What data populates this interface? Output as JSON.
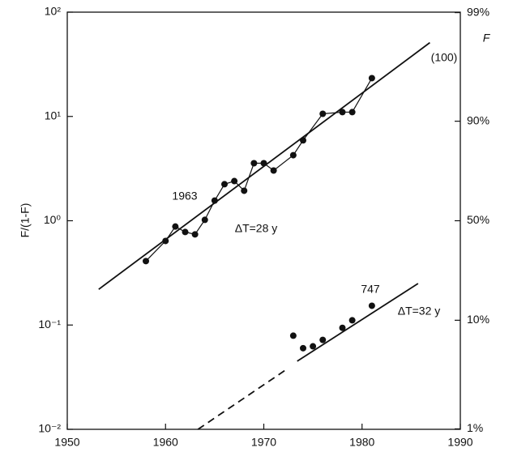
{
  "chart_data": {
    "type": "scatter",
    "ylabel": "F/(1-F)",
    "y2label": "F",
    "xlim": [
      1950,
      1990
    ],
    "xticks": [
      1950,
      1960,
      1970,
      1980,
      1990
    ],
    "ylim": [
      0.01,
      100
    ],
    "yscale": "log",
    "yticks": [
      {
        "value": 100,
        "label": "10²"
      },
      {
        "value": 10,
        "label": "10¹"
      },
      {
        "value": 1,
        "label": "10⁰"
      },
      {
        "value": 0.1,
        "label": "10⁻¹"
      },
      {
        "value": 0.01,
        "label": "10⁻²"
      }
    ],
    "y2scale": "logit",
    "y2lim": [
      0.99,
      99.01
    ],
    "y2ticks": [
      {
        "value": 99,
        "label": "99%"
      },
      {
        "value": 90,
        "label": "90%"
      },
      {
        "value": 50,
        "label": "50%"
      },
      {
        "value": 10,
        "label": "10%"
      },
      {
        "value": 1,
        "label": "1%"
      }
    ],
    "series": [
      {
        "color": "#111",
        "connected": true,
        "x": [
          1958,
          1960,
          1961,
          1962,
          1963,
          1964,
          1965,
          1966,
          1967,
          1968,
          1969,
          1970,
          1971,
          1973,
          1974,
          1976,
          1978,
          1979,
          1981
        ],
        "values": [
          0.41,
          0.64,
          0.88,
          0.78,
          0.74,
          1.02,
          1.56,
          2.24,
          2.4,
          1.94,
          3.56,
          3.56,
          3.03,
          4.25,
          5.9,
          10.6,
          11,
          11,
          23.3
        ]
      },
      {
        "color": "#111",
        "connected": false,
        "x": [
          1973,
          1974,
          1975,
          1976,
          1978,
          1979,
          1981
        ],
        "values": [
          0.079,
          0.06,
          0.0625,
          0.072,
          0.094,
          0.111,
          0.153
        ]
      }
    ],
    "fit_lines": [
      {
        "x": [
          1953.2,
          1986.9
        ],
        "values": [
          0.22,
          51
        ],
        "dashed": false
      },
      {
        "x": [
          1973.4,
          1985.7
        ],
        "values": [
          0.045,
          0.25
        ],
        "dashed": false
      },
      {
        "x": [
          1963.3,
          1972.5
        ],
        "values": [
          0.01,
          0.0386
        ],
        "dashed": true
      }
    ],
    "annotations": [
      "(100)",
      "1963",
      "ΔT=28 y",
      "747",
      "ΔT=32 y"
    ]
  }
}
